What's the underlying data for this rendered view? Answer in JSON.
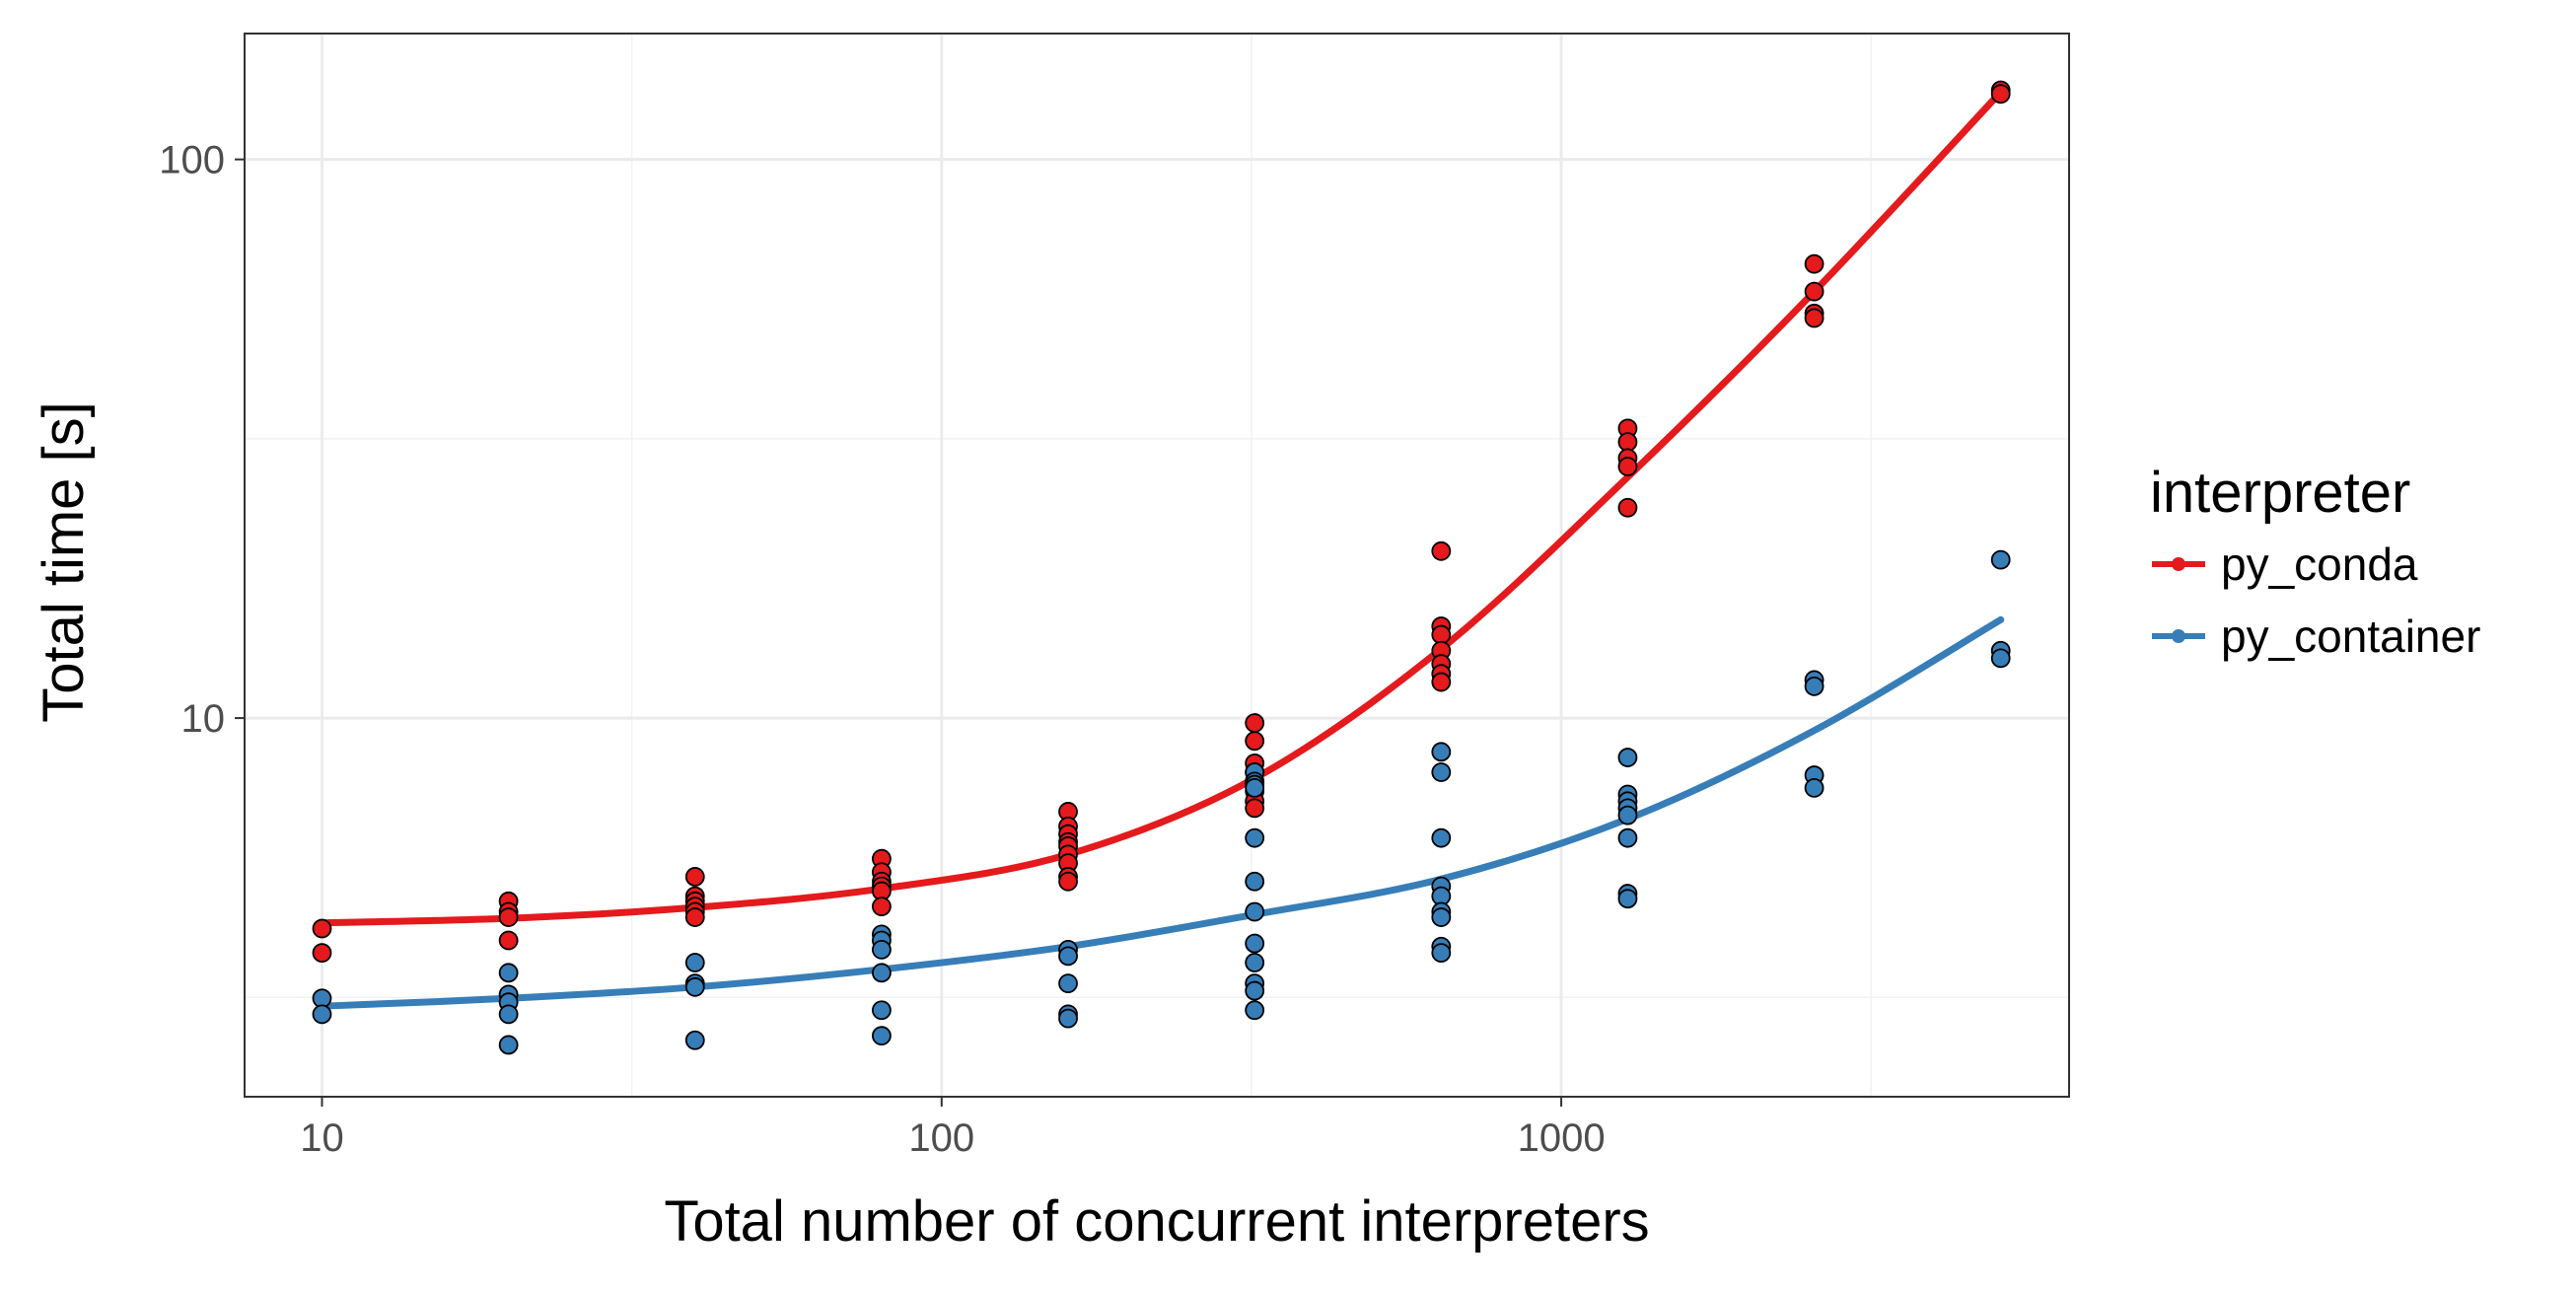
{
  "chart_data": {
    "type": "scatter",
    "title": "",
    "xlabel": "Total number of concurrent interpreters",
    "ylabel": "Total time [s]",
    "x_scale": "log10",
    "y_scale": "log10",
    "xlim": [
      7.5,
      6600
    ],
    "ylim": [
      2.1,
      168
    ],
    "grid": true,
    "x_ticks": [
      {
        "value": 10,
        "label": "10"
      },
      {
        "value": 100,
        "label": "100"
      },
      {
        "value": 1000,
        "label": "1000"
      }
    ],
    "y_ticks": [
      {
        "value": 10,
        "label": "10"
      },
      {
        "value": 100,
        "label": "100"
      }
    ],
    "legend": {
      "title": "interpreter",
      "position": "right"
    },
    "series": [
      {
        "name": "py_conda",
        "color": "#e41a1c",
        "points": [
          [
            10,
            4.2
          ],
          [
            10,
            3.8
          ],
          [
            20,
            4.7
          ],
          [
            20,
            4.5
          ],
          [
            20,
            4.4
          ],
          [
            20,
            4.0
          ],
          [
            40,
            5.2
          ],
          [
            40,
            4.8
          ],
          [
            40,
            4.7
          ],
          [
            40,
            4.6
          ],
          [
            40,
            4.5
          ],
          [
            40,
            4.4
          ],
          [
            80,
            5.6
          ],
          [
            80,
            5.3
          ],
          [
            80,
            5.1
          ],
          [
            80,
            5.0
          ],
          [
            80,
            4.9
          ],
          [
            80,
            4.6
          ],
          [
            160,
            6.8
          ],
          [
            160,
            6.4
          ],
          [
            160,
            6.2
          ],
          [
            160,
            6.0
          ],
          [
            160,
            5.9
          ],
          [
            160,
            5.7
          ],
          [
            160,
            5.5
          ],
          [
            160,
            5.2
          ],
          [
            160,
            5.1
          ],
          [
            320,
            9.8
          ],
          [
            320,
            9.1
          ],
          [
            320,
            8.3
          ],
          [
            320,
            8.0
          ],
          [
            320,
            7.7
          ],
          [
            320,
            7.4
          ],
          [
            320,
            7.1
          ],
          [
            320,
            6.9
          ],
          [
            640,
            19.9
          ],
          [
            640,
            14.6
          ],
          [
            640,
            14.1
          ],
          [
            640,
            13.2
          ],
          [
            640,
            12.5
          ],
          [
            640,
            12.0
          ],
          [
            640,
            11.6
          ],
          [
            1280,
            33.0
          ],
          [
            1280,
            31.2
          ],
          [
            1280,
            29.2
          ],
          [
            1280,
            28.2
          ],
          [
            1280,
            23.8
          ],
          [
            2560,
            65.0
          ],
          [
            2560,
            58.0
          ],
          [
            2560,
            53.0
          ],
          [
            2560,
            52.0
          ],
          [
            5120,
            133.0
          ],
          [
            5120,
            131.0
          ]
        ],
        "fit": [
          [
            10,
            4.3
          ],
          [
            20,
            4.38
          ],
          [
            40,
            4.58
          ],
          [
            80,
            4.95
          ],
          [
            160,
            5.7
          ],
          [
            320,
            7.8
          ],
          [
            640,
            13.3
          ],
          [
            1280,
            27.0
          ],
          [
            2560,
            58.0
          ],
          [
            5120,
            132.0
          ]
        ]
      },
      {
        "name": "py_container",
        "color": "#377eb8",
        "points": [
          [
            10,
            3.15
          ],
          [
            10,
            2.95
          ],
          [
            20,
            3.5
          ],
          [
            20,
            3.2
          ],
          [
            20,
            3.1
          ],
          [
            20,
            2.95
          ],
          [
            20,
            2.6
          ],
          [
            40,
            3.65
          ],
          [
            40,
            3.35
          ],
          [
            40,
            3.3
          ],
          [
            40,
            2.65
          ],
          [
            80,
            4.1
          ],
          [
            80,
            4.0
          ],
          [
            80,
            3.85
          ],
          [
            80,
            3.5
          ],
          [
            80,
            3.0
          ],
          [
            80,
            2.7
          ],
          [
            160,
            3.85
          ],
          [
            160,
            3.75
          ],
          [
            160,
            3.35
          ],
          [
            160,
            2.95
          ],
          [
            160,
            2.9
          ],
          [
            320,
            8.0
          ],
          [
            320,
            7.7
          ],
          [
            320,
            7.6
          ],
          [
            320,
            7.5
          ],
          [
            320,
            6.1
          ],
          [
            320,
            5.1
          ],
          [
            320,
            4.5
          ],
          [
            320,
            3.95
          ],
          [
            320,
            3.65
          ],
          [
            320,
            3.35
          ],
          [
            320,
            3.25
          ],
          [
            320,
            3.0
          ],
          [
            640,
            8.7
          ],
          [
            640,
            8.0
          ],
          [
            640,
            6.1
          ],
          [
            640,
            5.0
          ],
          [
            640,
            4.8
          ],
          [
            640,
            4.5
          ],
          [
            640,
            4.4
          ],
          [
            640,
            3.9
          ],
          [
            640,
            3.8
          ],
          [
            1280,
            8.5
          ],
          [
            1280,
            7.3
          ],
          [
            1280,
            7.1
          ],
          [
            1280,
            6.9
          ],
          [
            1280,
            6.7
          ],
          [
            1280,
            6.1
          ],
          [
            1280,
            4.85
          ],
          [
            1280,
            4.75
          ],
          [
            2560,
            11.7
          ],
          [
            2560,
            11.4
          ],
          [
            2560,
            7.9
          ],
          [
            2560,
            7.5
          ],
          [
            5120,
            19.2
          ],
          [
            5120,
            13.2
          ],
          [
            5120,
            12.8
          ]
        ],
        "fit": [
          [
            10,
            3.05
          ],
          [
            20,
            3.15
          ],
          [
            40,
            3.3
          ],
          [
            80,
            3.55
          ],
          [
            160,
            3.9
          ],
          [
            320,
            4.45
          ],
          [
            640,
            5.15
          ],
          [
            1280,
            6.6
          ],
          [
            2560,
            9.5
          ],
          [
            5120,
            15.0
          ]
        ]
      }
    ]
  }
}
